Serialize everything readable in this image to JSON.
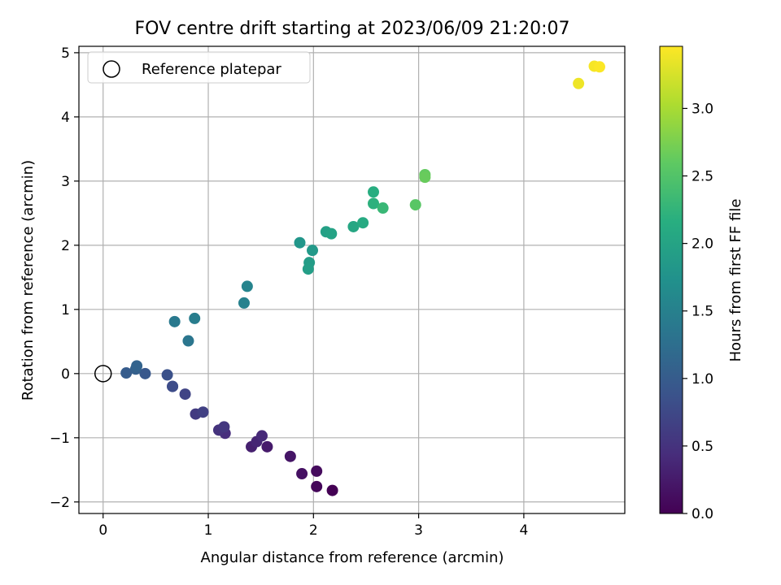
{
  "chart_data": {
    "type": "scatter",
    "title": "FOV centre drift starting at 2023/06/09 21:20:07",
    "xlabel": "Angular distance from reference (arcmin)",
    "ylabel": "Rotation from reference (arcmin)",
    "xlim": [
      -0.23,
      4.96
    ],
    "ylim": [
      -2.18,
      5.1
    ],
    "x_ticks": [
      0,
      1,
      2,
      3,
      4
    ],
    "y_ticks": [
      -2,
      -1,
      0,
      1,
      2,
      3,
      4,
      5
    ],
    "x_tick_labels": [
      "0",
      "1",
      "2",
      "3",
      "4"
    ],
    "y_tick_labels": [
      "−2",
      "−1",
      "0",
      "1",
      "2",
      "3",
      "4",
      "5"
    ],
    "grid": true,
    "legend": {
      "position": "top-left",
      "entries": [
        "Reference platepar"
      ]
    },
    "reference": {
      "x": 0,
      "y": 0
    },
    "colorbar": {
      "label": "Hours from first FF file",
      "range": [
        0,
        3.46
      ],
      "ticks": [
        0,
        0.5,
        1.0,
        1.5,
        2.0,
        2.5,
        3.0
      ],
      "tick_labels": [
        "0.0",
        "0.5",
        "1.0",
        "1.5",
        "2.0",
        "2.5",
        "3.0"
      ],
      "colormap": "viridis"
    },
    "points": [
      {
        "x": 2.18,
        "y": -1.82,
        "hours": 0.0
      },
      {
        "x": 2.03,
        "y": -1.76,
        "hours": 0.05
      },
      {
        "x": 2.03,
        "y": -1.52,
        "hours": 0.1
      },
      {
        "x": 1.89,
        "y": -1.56,
        "hours": 0.15
      },
      {
        "x": 1.78,
        "y": -1.29,
        "hours": 0.2
      },
      {
        "x": 1.56,
        "y": -1.14,
        "hours": 0.25
      },
      {
        "x": 1.41,
        "y": -1.14,
        "hours": 0.3
      },
      {
        "x": 1.46,
        "y": -1.06,
        "hours": 0.35
      },
      {
        "x": 1.51,
        "y": -0.97,
        "hours": 0.4
      },
      {
        "x": 1.16,
        "y": -0.93,
        "hours": 0.45
      },
      {
        "x": 1.1,
        "y": -0.88,
        "hours": 0.5
      },
      {
        "x": 1.15,
        "y": -0.83,
        "hours": 0.55
      },
      {
        "x": 0.88,
        "y": -0.63,
        "hours": 0.6
      },
      {
        "x": 0.95,
        "y": -0.6,
        "hours": 0.65
      },
      {
        "x": 0.78,
        "y": -0.32,
        "hours": 0.7
      },
      {
        "x": 0.66,
        "y": -0.2,
        "hours": 0.75
      },
      {
        "x": 0.66,
        "y": -0.2,
        "hours": 0.8
      },
      {
        "x": 0.61,
        "y": -0.02,
        "hours": 0.85
      },
      {
        "x": 0.4,
        "y": 0.0,
        "hours": 0.95
      },
      {
        "x": 0.22,
        "y": 0.01,
        "hours": 1.0
      },
      {
        "x": 0.31,
        "y": 0.07,
        "hours": 1.05
      },
      {
        "x": 0.32,
        "y": 0.12,
        "hours": 1.1
      },
      {
        "x": 0.81,
        "y": 0.51,
        "hours": 1.35
      },
      {
        "x": 0.68,
        "y": 0.81,
        "hours": 1.4
      },
      {
        "x": 0.87,
        "y": 0.86,
        "hours": 1.45
      },
      {
        "x": 1.34,
        "y": 1.1,
        "hours": 1.5
      },
      {
        "x": 1.37,
        "y": 1.36,
        "hours": 1.55
      },
      {
        "x": 1.87,
        "y": 2.04,
        "hours": 1.8
      },
      {
        "x": 1.99,
        "y": 1.92,
        "hours": 1.85
      },
      {
        "x": 1.96,
        "y": 1.73,
        "hours": 1.9
      },
      {
        "x": 1.95,
        "y": 1.63,
        "hours": 1.92
      },
      {
        "x": 2.12,
        "y": 2.21,
        "hours": 1.95
      },
      {
        "x": 2.17,
        "y": 2.18,
        "hours": 1.98
      },
      {
        "x": 2.38,
        "y": 2.29,
        "hours": 2.05
      },
      {
        "x": 2.47,
        "y": 2.35,
        "hours": 2.1
      },
      {
        "x": 2.57,
        "y": 2.83,
        "hours": 2.15
      },
      {
        "x": 2.57,
        "y": 2.65,
        "hours": 2.2
      },
      {
        "x": 2.66,
        "y": 2.58,
        "hours": 2.3
      },
      {
        "x": 2.97,
        "y": 2.63,
        "hours": 2.55
      },
      {
        "x": 3.06,
        "y": 3.1,
        "hours": 2.62
      },
      {
        "x": 3.06,
        "y": 3.06,
        "hours": 2.65
      },
      {
        "x": 4.52,
        "y": 4.52,
        "hours": 3.38
      },
      {
        "x": 4.67,
        "y": 4.79,
        "hours": 3.42
      },
      {
        "x": 4.72,
        "y": 4.78,
        "hours": 3.45
      }
    ]
  }
}
